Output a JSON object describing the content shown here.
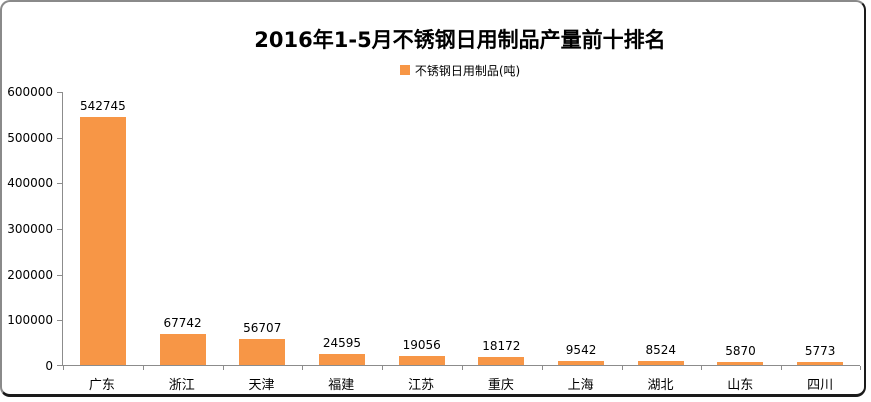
{
  "frame": {
    "background": "#FFFFFF",
    "border_light": "#8A8A8A",
    "border_dark": "#1A1A1A"
  },
  "chart_data": {
    "type": "bar",
    "title": "2016年1-5月不锈钢日用制品产量前十排名",
    "legend": "不锈钢日用制品(吨)",
    "categories": [
      "广东",
      "浙江",
      "天津",
      "福建",
      "江苏",
      "重庆",
      "上海",
      "湖北",
      "山东",
      "四川"
    ],
    "values": [
      542745,
      67742,
      56707,
      24595,
      19056,
      18172,
      9542,
      8524,
      5870,
      5773
    ],
    "ylim": [
      0,
      600000
    ],
    "ytick_labels": [
      "0",
      "100000",
      "200000",
      "300000",
      "400000",
      "500000",
      "600000"
    ],
    "xlabel": "",
    "ylabel": "",
    "grid": "off",
    "legend_position": "top-center",
    "bar_color": "#F79646",
    "axis_color": "#8C8C8C",
    "text_color": "#000000"
  }
}
